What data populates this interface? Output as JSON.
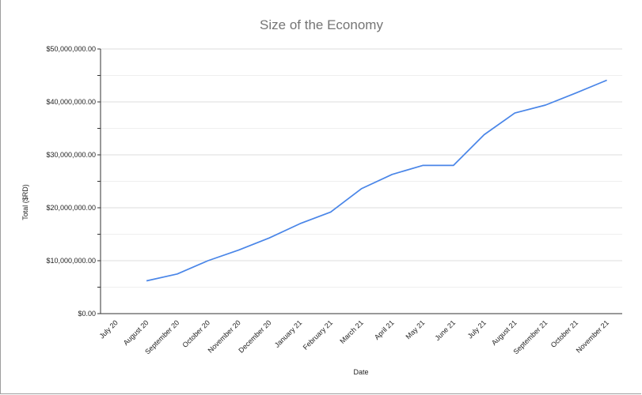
{
  "chart_data": {
    "type": "line",
    "title": "Size of the Economy",
    "xlabel": "Date",
    "ylabel": "Total ($RD)",
    "categories": [
      "July 20",
      "August 20",
      "September 20",
      "October 20",
      "November 20",
      "December 20",
      "January 21",
      "February 21",
      "March 21",
      "April 21",
      "May 21",
      "June 21",
      "July 21",
      "August 21",
      "September 21",
      "October 21",
      "November 21"
    ],
    "series": [
      {
        "values": [
          null,
          6200000,
          7500000,
          10000000,
          12000000,
          14300000,
          17000000,
          19200000,
          23600000,
          26300000,
          28000000,
          28000000,
          33800000,
          37900000,
          39400000,
          41700000,
          44100000
        ]
      }
    ],
    "ylim": [
      0,
      50000000
    ],
    "yticks": [
      0,
      10000000,
      20000000,
      30000000,
      40000000,
      50000000
    ],
    "ytick_labels": [
      "$0.00",
      "$10,000,000.00",
      "$20,000,000.00",
      "$30,000,000.00",
      "$40,000,000.00",
      "$50,000,000.00"
    ],
    "grid": true,
    "legend": "none",
    "line_color": "#4a86e8"
  }
}
